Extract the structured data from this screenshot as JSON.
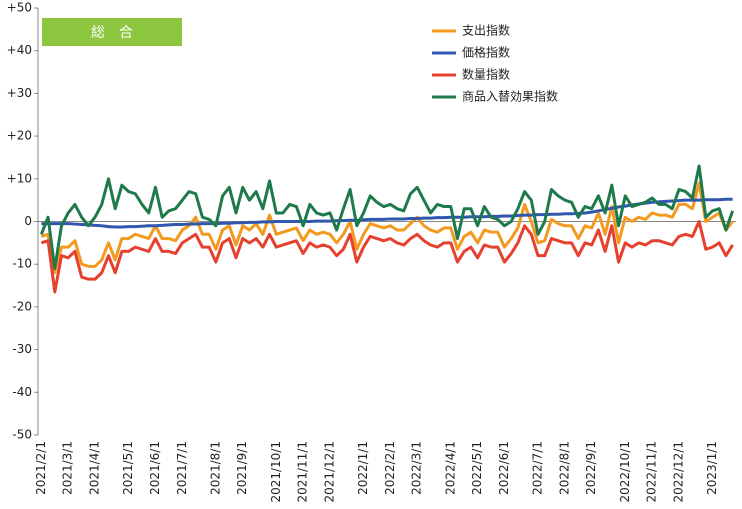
{
  "chart_data": {
    "type": "line",
    "annotation": "総　合",
    "categories": [
      "2021/2/1",
      null,
      null,
      null,
      "2021/3/1",
      null,
      null,
      null,
      "2021/4/1",
      null,
      null,
      null,
      null,
      "2021/5/1",
      null,
      null,
      null,
      "2021/6/1",
      null,
      null,
      null,
      "2021/7/1",
      null,
      null,
      null,
      null,
      "2021/8/1",
      null,
      null,
      null,
      "2021/9/1",
      null,
      null,
      null,
      null,
      "2021/10/1",
      null,
      null,
      null,
      "2021/11/1",
      null,
      null,
      null,
      "2021/12/1",
      null,
      null,
      null,
      null,
      "2022/1/1",
      null,
      null,
      null,
      "2022/2/1",
      null,
      null,
      null,
      "2022/3/1",
      null,
      null,
      null,
      null,
      "2022/4/1",
      null,
      null,
      null,
      "2022/5/1",
      null,
      null,
      null,
      "2022/6/1",
      null,
      null,
      null,
      null,
      "2022/7/1",
      null,
      null,
      null,
      "2022/8/1",
      null,
      null,
      null,
      "2022/9/1",
      null,
      null,
      null,
      null,
      "2022/10/1",
      null,
      null,
      null,
      "2022/11/1",
      null,
      null,
      null,
      "2022/12/1",
      null,
      null,
      null,
      null,
      "2023/1/1",
      null,
      null,
      null
    ],
    "series": [
      {
        "name": "支出指数",
        "color": "#f39a1e",
        "values": [
          -3.5,
          -3,
          -12,
          -6,
          -6,
          -4.5,
          -10,
          -10.5,
          -10.5,
          -9,
          -5,
          -9,
          -4,
          -4,
          -3,
          -3.5,
          -4,
          -1,
          -4,
          -4,
          -4.5,
          -2,
          -1,
          1,
          -3,
          -3,
          -6.5,
          -2,
          -1,
          -5.5,
          -1,
          -2,
          -0.5,
          -3,
          1.5,
          -3,
          -2.5,
          -2,
          -1.5,
          -4.5,
          -2,
          -3,
          -2.5,
          -3,
          -5,
          -3,
          0,
          -6.5,
          -3,
          -0.5,
          -1,
          -1.5,
          -1,
          -2,
          -2,
          -0.5,
          1,
          -1,
          -2,
          -2.5,
          -1.5,
          -1.5,
          -6.5,
          -3.5,
          -2.5,
          -5,
          -2,
          -2.5,
          -2.5,
          -6,
          -4,
          -1.5,
          4,
          0,
          -5,
          -4.5,
          0.5,
          -0.5,
          -1,
          -1,
          -4,
          -1,
          -1.5,
          2,
          -3,
          3.5,
          -5,
          1,
          0,
          1,
          0.5,
          2,
          1.5,
          1.5,
          1,
          4,
          4,
          3,
          9,
          0,
          1,
          2,
          -2,
          0
        ]
      },
      {
        "name": "価格指数",
        "color": "#2f57ad",
        "values": [
          -0.5,
          -0.5,
          -0.5,
          -0.5,
          -0.5,
          -0.6,
          -0.7,
          -0.8,
          -0.9,
          -1.0,
          -1.2,
          -1.3,
          -1.3,
          -1.2,
          -1.2,
          -1.1,
          -1.0,
          -1.0,
          -0.9,
          -0.8,
          -0.7,
          -0.7,
          -0.6,
          -0.6,
          -0.5,
          -0.5,
          -0.5,
          -0.4,
          -0.4,
          -0.3,
          -0.3,
          -0.2,
          -0.2,
          -0.1,
          -0.1,
          0,
          0,
          0,
          0,
          0,
          0,
          0.1,
          0.1,
          0.1,
          0.2,
          0.2,
          0.3,
          0.3,
          0.4,
          0.5,
          0.5,
          0.5,
          0.6,
          0.6,
          0.6,
          0.7,
          0.7,
          0.8,
          0.8,
          0.9,
          0.9,
          1.0,
          1.0,
          1.0,
          1.1,
          1.1,
          1.1,
          1.2,
          1.2,
          1.3,
          1.3,
          1.4,
          1.5,
          1.5,
          1.6,
          1.6,
          1.7,
          1.7,
          1.8,
          1.8,
          1.9,
          2.0,
          2.2,
          2.5,
          2.8,
          3.1,
          3.4,
          3.6,
          3.9,
          4.1,
          4.3,
          4.5,
          4.6,
          4.7,
          4.8,
          4.9,
          5.0,
          5.0,
          5.0,
          5.1,
          5.1,
          5.1,
          5.2,
          5.2
        ]
      },
      {
        "name": "数量指数",
        "color": "#e6402e",
        "values": [
          -5,
          -4.5,
          -16.5,
          -8,
          -8.5,
          -7,
          -13,
          -13.5,
          -13.5,
          -12,
          -8,
          -12,
          -7,
          -7,
          -6,
          -6.5,
          -7,
          -4,
          -7,
          -7,
          -7.5,
          -5,
          -4,
          -3,
          -6,
          -6,
          -9.5,
          -5,
          -4,
          -8.5,
          -4,
          -5,
          -4,
          -6,
          -3,
          -6,
          -5.5,
          -5,
          -4.5,
          -7.5,
          -5,
          -6,
          -5.5,
          -6,
          -8,
          -6.5,
          -3,
          -9.5,
          -6,
          -3.5,
          -4,
          -4.5,
          -4,
          -5,
          -5.5,
          -4,
          -3,
          -4.5,
          -5.5,
          -6,
          -5,
          -5,
          -9.5,
          -7,
          -6,
          -8.5,
          -5.5,
          -6,
          -6,
          -9.5,
          -7.5,
          -5,
          -1,
          -3,
          -8,
          -8,
          -4,
          -4.5,
          -5,
          -5,
          -8,
          -5,
          -5.5,
          -2,
          -7,
          -1,
          -9.5,
          -5,
          -6,
          -5,
          -5.5,
          -4.5,
          -4.5,
          -5,
          -5.5,
          -3.5,
          -3,
          -3.5,
          0,
          -6.5,
          -6,
          -5,
          -8,
          -5.5
        ]
      },
      {
        "name": "商品入替効果指数",
        "color": "#1f7a4b",
        "values": [
          -3,
          1,
          -11,
          -1,
          2,
          4,
          1,
          -1,
          1,
          4,
          10,
          3,
          8.5,
          7,
          6.5,
          4,
          2,
          8,
          1,
          2.5,
          3,
          5,
          7,
          6.5,
          1,
          0.5,
          -1,
          6,
          8,
          2,
          8,
          5,
          7,
          3,
          9.5,
          2,
          2,
          4,
          3.5,
          -1,
          4,
          2,
          1.5,
          2,
          -2,
          3,
          7.5,
          -1,
          2,
          6,
          4.5,
          3.5,
          4,
          3,
          2.5,
          6.5,
          8,
          5,
          2,
          4,
          3.5,
          3.5,
          -4,
          3,
          3,
          -1,
          3.5,
          1,
          0.5,
          -1,
          0,
          3,
          7,
          5,
          -3,
          0,
          7.5,
          6,
          5,
          4.5,
          1,
          3.5,
          3,
          6,
          2,
          8.5,
          -1,
          6,
          3.5,
          4,
          4.5,
          5.5,
          4,
          4,
          3,
          7.5,
          7,
          5.5,
          13,
          1,
          2.5,
          3,
          -2,
          2.5
        ]
      }
    ],
    "ylim": [
      -50,
      50
    ],
    "yticks": [
      {
        "value": 50,
        "label": "+50"
      },
      {
        "value": 40,
        "label": "+40"
      },
      {
        "value": 30,
        "label": "+30"
      },
      {
        "value": 20,
        "label": "+20"
      },
      {
        "value": 10,
        "label": "+10"
      },
      0,
      -10,
      -20,
      -30,
      -40,
      -50
    ],
    "grid": false,
    "legend": "upper right"
  }
}
